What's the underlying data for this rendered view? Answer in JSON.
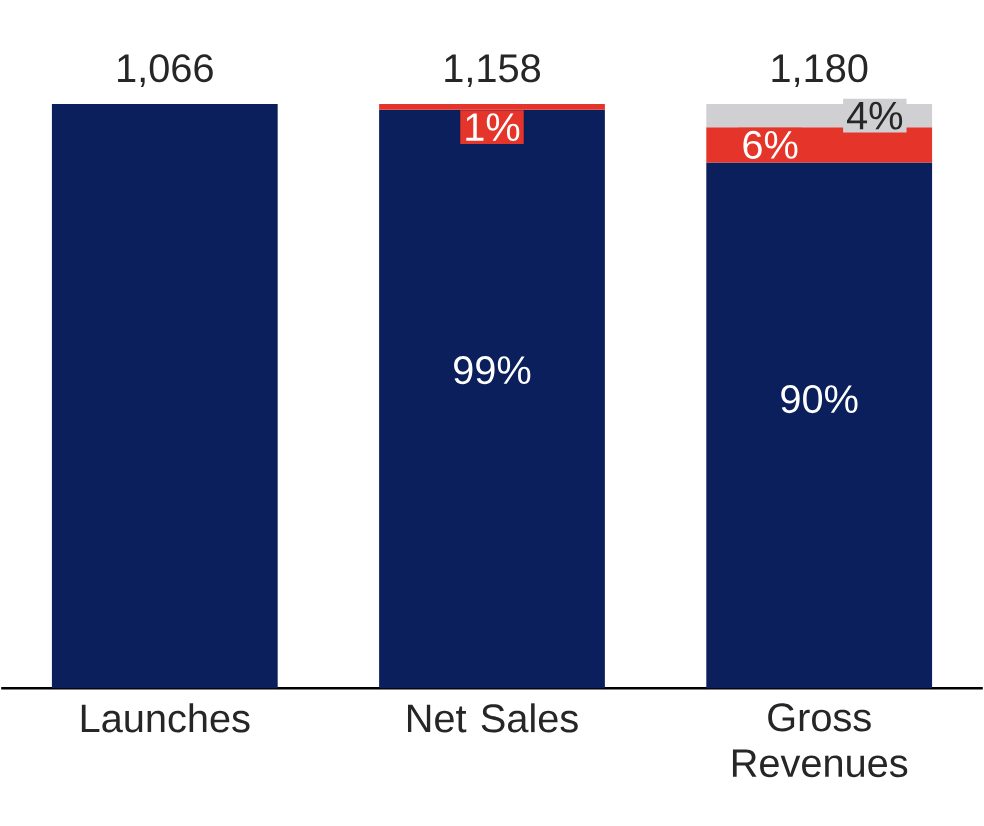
{
  "chart_data": {
    "type": "bar",
    "stacked": true,
    "categories": [
      "Launches",
      "Net Sales",
      "Gross Revenues"
    ],
    "series": [
      {
        "color": "#0a1f5c",
        "values": [
          100,
          99,
          90
        ],
        "value_labels": [
          null,
          "99%",
          "90%"
        ]
      },
      {
        "color": "#e5352b",
        "values": [
          null,
          1,
          6
        ],
        "value_labels": [
          null,
          "1%",
          "6%"
        ]
      },
      {
        "color": "#d0d0d2",
        "values": [
          null,
          null,
          4
        ],
        "value_labels": [
          null,
          null,
          "4%"
        ]
      }
    ],
    "annotations": [
      {
        "text": "1,066",
        "x": "Launches",
        "y": 100
      },
      {
        "text": "1,158",
        "x": "Net Sales",
        "y": 100
      },
      {
        "text": "1,180",
        "x": "Gross Revenues",
        "y": 100
      }
    ]
  }
}
